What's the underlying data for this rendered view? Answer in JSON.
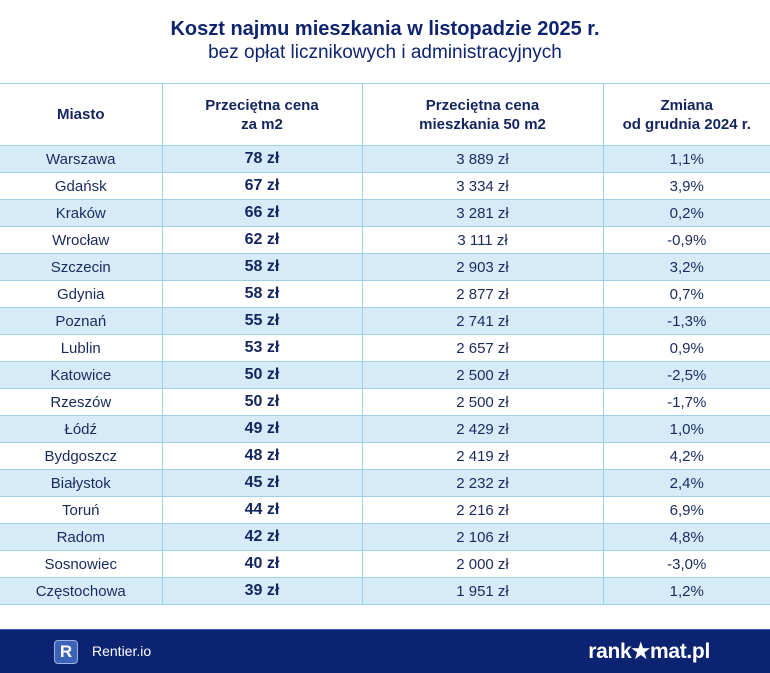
{
  "header": {
    "title": "Koszt najmu mieszkania w listopadzie 2025 r.",
    "subtitle": "bez opłat licznikowych i administracyjnych"
  },
  "chart_data": {
    "type": "table",
    "title": "Koszt najmu mieszkania w listopadzie 2025 r.",
    "subtitle": "bez opłat licznikowych i administracyjnych",
    "columns": [
      {
        "l1": "Miasto",
        "l2": ""
      },
      {
        "l1": "Przeciętna cena",
        "l2": "za m2"
      },
      {
        "l1": "Przeciętna cena",
        "l2": "mieszkania 50 m2"
      },
      {
        "l1": "Zmiana",
        "l2": "od grudnia 2024 r."
      }
    ],
    "rows": [
      [
        "Warszawa",
        "78 zł",
        "3 889 zł",
        "1,1%"
      ],
      [
        "Gdańsk",
        "67 zł",
        "3 334 zł",
        "3,9%"
      ],
      [
        "Kraków",
        "66 zł",
        "3 281 zł",
        "0,2%"
      ],
      [
        "Wrocław",
        "62 zł",
        "3 111 zł",
        "-0,9%"
      ],
      [
        "Szczecin",
        "58 zł",
        "2 903 zł",
        "3,2%"
      ],
      [
        "Gdynia",
        "58 zł",
        "2 877 zł",
        "0,7%"
      ],
      [
        "Poznań",
        "55 zł",
        "2 741 zł",
        "-1,3%"
      ],
      [
        "Lublin",
        "53 zł",
        "2 657 zł",
        "0,9%"
      ],
      [
        "Katowice",
        "50 zł",
        "2 500 zł",
        "-2,5%"
      ],
      [
        "Rzeszów",
        "50 zł",
        "2 500 zł",
        "-1,7%"
      ],
      [
        "Łódź",
        "49 zł",
        "2 429 zł",
        "1,0%"
      ],
      [
        "Bydgoszcz",
        "48 zł",
        "2 419 zł",
        "4,2%"
      ],
      [
        "Białystok",
        "45 zł",
        "2 232 zł",
        "2,4%"
      ],
      [
        "Toruń",
        "44 zł",
        "2 216 zł",
        "6,9%"
      ],
      [
        "Radom",
        "42 zł",
        "2 106 zł",
        "4,8%"
      ],
      [
        "Sosnowiec",
        "40 zł",
        "2 000 zł",
        "-3,0%"
      ],
      [
        "Częstochowa",
        "39 zł",
        "1 951 zł",
        "1,2%"
      ]
    ]
  },
  "footer": {
    "left_logo_letter": "R",
    "left_brand": "Rentier.io",
    "right_brand": "rank★mat.pl"
  },
  "colors": {
    "navy": "#0c2372",
    "row_alt": "#d5ecf8",
    "border": "#9fd0ea"
  }
}
